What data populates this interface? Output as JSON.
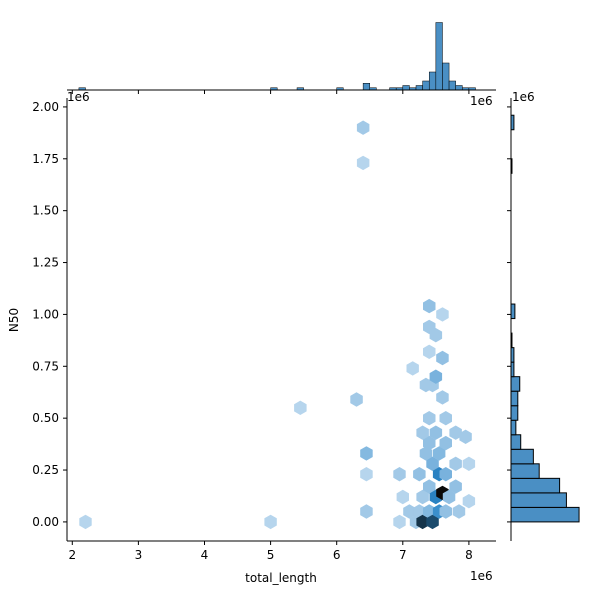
{
  "chart_data": {
    "type": "hexbin_joint",
    "x_label": "total_length",
    "y_label": "N50",
    "x_offset_label": "1e6",
    "y_offset_label": "1e6",
    "xlim": [
      1920000,
      8410000
    ],
    "ylim": [
      -92000,
      2043000
    ],
    "xticks": [
      {
        "value": 2000000,
        "label": "2"
      },
      {
        "value": 3000000,
        "label": "3"
      },
      {
        "value": 4000000,
        "label": "4"
      },
      {
        "value": 5000000,
        "label": "5"
      },
      {
        "value": 6000000,
        "label": "6"
      },
      {
        "value": 7000000,
        "label": "7"
      },
      {
        "value": 8000000,
        "label": "8"
      }
    ],
    "yticks": [
      {
        "value": 0,
        "label": "0.00"
      },
      {
        "value": 250000,
        "label": "0.25"
      },
      {
        "value": 500000,
        "label": "0.50"
      },
      {
        "value": 750000,
        "label": "0.75"
      },
      {
        "value": 1000000,
        "label": "1.00"
      },
      {
        "value": 1250000,
        "label": "1.25"
      },
      {
        "value": 1500000,
        "label": "1.50"
      },
      {
        "value": 1750000,
        "label": "1.75"
      },
      {
        "value": 2000000,
        "label": "2.00"
      }
    ],
    "colors": [
      "#e8f1fa",
      "#2b86c8",
      "#0a0a0a"
    ],
    "count_max": 40,
    "hexbins": {
      "x": [
        2200000,
        5000000,
        5450000,
        6300000,
        6400000,
        6400000,
        6450000,
        6450000,
        6450000,
        6950000,
        6950000,
        7000000,
        7100000,
        7150000,
        7200000,
        7250000,
        7250000,
        7300000,
        7300000,
        7300000,
        7350000,
        7350000,
        7400000,
        7400000,
        7400000,
        7400000,
        7400000,
        7400000,
        7400000,
        7450000,
        7450000,
        7450000,
        7500000,
        7500000,
        7500000,
        7500000,
        7550000,
        7550000,
        7550000,
        7600000,
        7600000,
        7600000,
        7600000,
        7650000,
        7650000,
        7650000,
        7650000,
        7700000,
        7800000,
        7800000,
        7800000,
        7950000,
        8000000,
        8000000,
        7850000
      ],
      "y": [
        0,
        0,
        550000,
        590000,
        1900000,
        1730000,
        330000,
        230000,
        50000,
        0,
        230000,
        120000,
        50000,
        740000,
        0,
        230000,
        50000,
        0,
        120000,
        430000,
        660000,
        330000,
        1040000,
        940000,
        820000,
        500000,
        380000,
        170000,
        50000,
        0,
        280000,
        660000,
        700000,
        900000,
        430000,
        120000,
        230000,
        50000,
        330000,
        140000,
        600000,
        790000,
        1000000,
        500000,
        380000,
        230000,
        50000,
        120000,
        280000,
        170000,
        430000,
        410000,
        280000,
        100000,
        50000
      ],
      "counts": [
        1,
        1,
        1,
        2,
        2,
        1,
        4,
        1,
        2,
        1,
        2,
        1,
        2,
        1,
        2,
        3,
        2,
        30,
        2,
        2,
        2,
        3,
        3,
        2,
        1,
        2,
        3,
        3,
        4,
        25,
        5,
        2,
        5,
        2,
        3,
        15,
        15,
        12,
        4,
        40,
        2,
        3,
        1,
        2,
        3,
        5,
        3,
        3,
        2,
        3,
        2,
        2,
        1,
        1,
        2
      ]
    },
    "marginal_x": {
      "color": "#4a8fc4",
      "count_lim": [
        0,
        32
      ],
      "bins": [
        2100000,
        2200000,
        2300000,
        2400000,
        2500000,
        2600000,
        2700000,
        2800000,
        2900000,
        3000000,
        3100000,
        3200000,
        3300000,
        3400000,
        3500000,
        3600000,
        3700000,
        3800000,
        3900000,
        4000000,
        4100000,
        4200000,
        4300000,
        4400000,
        4500000,
        4600000,
        4700000,
        4800000,
        4900000,
        5000000,
        5100000,
        5200000,
        5300000,
        5400000,
        5500000,
        5600000,
        5700000,
        5800000,
        5900000,
        6000000,
        6100000,
        6200000,
        6300000,
        6400000,
        6500000,
        6600000,
        6700000,
        6800000,
        6900000,
        7000000,
        7100000,
        7200000,
        7300000,
        7400000,
        7500000,
        7600000,
        7700000,
        7800000,
        7900000,
        8000000,
        8100000
      ],
      "counts": [
        1,
        0,
        0,
        0,
        0,
        0,
        0,
        0,
        0,
        0,
        0,
        0,
        0,
        0,
        0,
        0,
        0,
        0,
        0,
        0,
        0,
        0,
        0,
        0,
        0,
        0,
        0,
        0,
        0,
        1,
        0,
        0,
        0,
        1,
        0,
        0,
        0,
        0,
        0,
        1,
        0,
        0,
        0,
        3,
        1,
        0,
        0,
        1,
        1,
        2,
        1,
        2,
        4,
        8,
        30,
        12,
        4,
        2,
        1,
        1
      ]
    },
    "marginal_y": {
      "color": "#4a8fc4",
      "count_lim": [
        0,
        72
      ],
      "bins": [
        0,
        70000,
        140000,
        210000,
        280000,
        350000,
        420000,
        490000,
        560000,
        630000,
        700000,
        770000,
        840000,
        910000,
        980000,
        1050000,
        1120000,
        1190000,
        1260000,
        1330000,
        1400000,
        1470000,
        1540000,
        1610000,
        1680000,
        1750000,
        1820000,
        1890000,
        1960000
      ],
      "counts": [
        70,
        57,
        50,
        29,
        23,
        10,
        5,
        7,
        7,
        9,
        3,
        3,
        1,
        0,
        4,
        0,
        0,
        0,
        0,
        0,
        0,
        0,
        0,
        0,
        1,
        0,
        0,
        3
      ]
    }
  }
}
